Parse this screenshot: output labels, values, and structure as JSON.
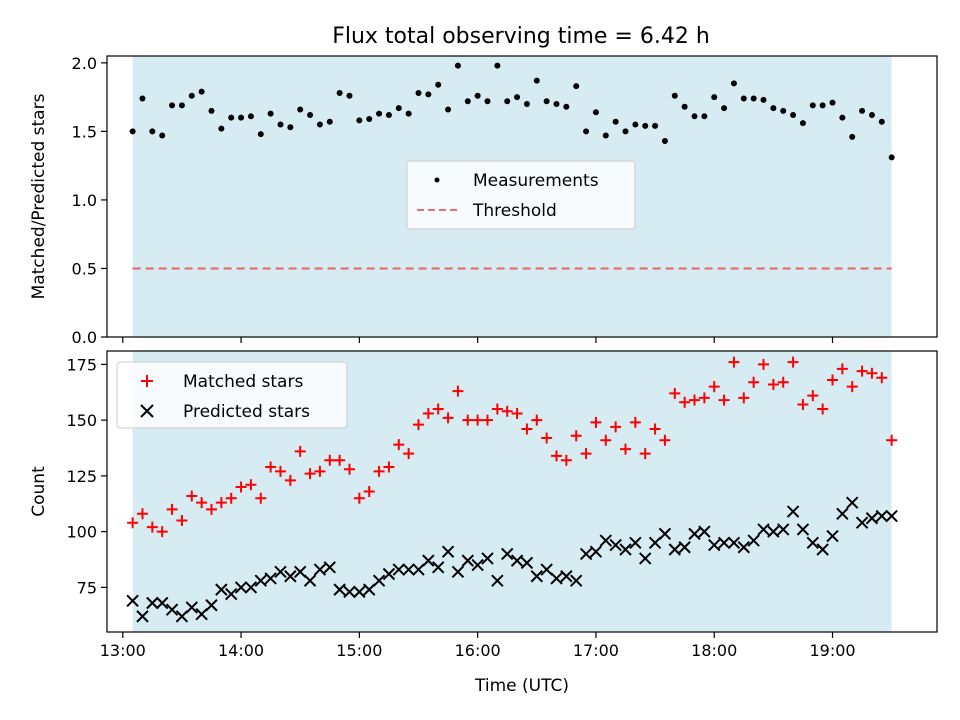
{
  "figure": {
    "title": "Flux total observing time = 6.42 h"
  },
  "chart_data": [
    {
      "type": "scatter",
      "ylabel": "Matched/Predicted stars",
      "xlabel": "",
      "xlim": [
        "12:52",
        "19:53"
      ],
      "ylim": [
        0,
        2.05
      ],
      "xticks": [
        "13:00",
        "14:00",
        "15:00",
        "16:00",
        "17:00",
        "18:00",
        "19:00"
      ],
      "yticks": [
        "0.0",
        "0.5",
        "1.0",
        "1.5",
        "2.0"
      ],
      "grid": false,
      "legend": "center",
      "shaded_span": [
        "13:05",
        "19:30"
      ],
      "threshold": 0.5,
      "series": [
        {
          "name": "Measurements",
          "marker": "dot",
          "color": "#000000",
          "x": [
            "13:05",
            "13:10",
            "13:15",
            "13:20",
            "13:25",
            "13:30",
            "13:35",
            "13:40",
            "13:45",
            "13:50",
            "13:55",
            "14:00",
            "14:05",
            "14:10",
            "14:15",
            "14:20",
            "14:25",
            "14:30",
            "14:35",
            "14:40",
            "14:45",
            "14:50",
            "14:55",
            "15:00",
            "15:05",
            "15:10",
            "15:15",
            "15:20",
            "15:25",
            "15:30",
            "15:35",
            "15:40",
            "15:45",
            "15:50",
            "15:55",
            "16:00",
            "16:05",
            "16:10",
            "16:15",
            "16:20",
            "16:25",
            "16:30",
            "16:35",
            "16:40",
            "16:45",
            "16:50",
            "16:55",
            "17:00",
            "17:05",
            "17:10",
            "17:15",
            "17:20",
            "17:25",
            "17:30",
            "17:35",
            "17:40",
            "17:45",
            "17:50",
            "17:55",
            "18:00",
            "18:05",
            "18:10",
            "18:15",
            "18:20",
            "18:25",
            "18:30",
            "18:35",
            "18:40",
            "18:45",
            "18:50",
            "18:55",
            "19:00",
            "19:05",
            "19:10",
            "19:15",
            "19:20",
            "19:25",
            "19:30"
          ],
          "y": [
            1.5,
            1.74,
            1.5,
            1.47,
            1.69,
            1.69,
            1.76,
            1.79,
            1.65,
            1.52,
            1.6,
            1.6,
            1.61,
            1.48,
            1.63,
            1.55,
            1.53,
            1.66,
            1.62,
            1.55,
            1.57,
            1.78,
            1.76,
            1.58,
            1.59,
            1.63,
            1.62,
            1.67,
            1.63,
            1.78,
            1.77,
            1.84,
            1.66,
            1.98,
            1.72,
            1.76,
            1.72,
            1.98,
            1.72,
            1.75,
            1.7,
            1.87,
            1.72,
            1.7,
            1.68,
            1.83,
            1.5,
            1.64,
            1.47,
            1.57,
            1.5,
            1.55,
            1.54,
            1.54,
            1.43,
            1.76,
            1.68,
            1.61,
            1.61,
            1.75,
            1.67,
            1.85,
            1.74,
            1.74,
            1.73,
            1.67,
            1.65,
            1.62,
            1.56,
            1.69,
            1.69,
            1.71,
            1.6,
            1.46,
            1.65,
            1.62,
            1.57,
            1.31
          ]
        },
        {
          "name": "Threshold",
          "marker": "dashed-line",
          "color": "#e87070"
        }
      ]
    },
    {
      "type": "scatter",
      "ylabel": "Count",
      "xlabel": "Time (UTC)",
      "xlim": [
        "12:52",
        "19:53"
      ],
      "ylim": [
        55,
        181
      ],
      "xticks": [
        "13:00",
        "14:00",
        "15:00",
        "16:00",
        "17:00",
        "18:00",
        "19:00"
      ],
      "yticks": [
        "75",
        "100",
        "125",
        "150",
        "175"
      ],
      "grid": false,
      "legend": "top-left",
      "shaded_span": [
        "13:05",
        "19:30"
      ],
      "series": [
        {
          "name": "Matched stars",
          "marker": "plus",
          "color": "#ff0000",
          "x": [
            "13:05",
            "13:10",
            "13:15",
            "13:20",
            "13:25",
            "13:30",
            "13:35",
            "13:40",
            "13:45",
            "13:50",
            "13:55",
            "14:00",
            "14:05",
            "14:10",
            "14:15",
            "14:20",
            "14:25",
            "14:30",
            "14:35",
            "14:40",
            "14:45",
            "14:50",
            "14:55",
            "15:00",
            "15:05",
            "15:10",
            "15:15",
            "15:20",
            "15:25",
            "15:30",
            "15:35",
            "15:40",
            "15:45",
            "15:50",
            "15:55",
            "16:00",
            "16:05",
            "16:10",
            "16:15",
            "16:20",
            "16:25",
            "16:30",
            "16:35",
            "16:40",
            "16:45",
            "16:50",
            "16:55",
            "17:00",
            "17:05",
            "17:10",
            "17:15",
            "17:20",
            "17:25",
            "17:30",
            "17:35",
            "17:40",
            "17:45",
            "17:50",
            "17:55",
            "18:00",
            "18:05",
            "18:10",
            "18:15",
            "18:20",
            "18:25",
            "18:30",
            "18:35",
            "18:40",
            "18:45",
            "18:50",
            "18:55",
            "19:00",
            "19:05",
            "19:10",
            "19:15",
            "19:20",
            "19:25",
            "19:30"
          ],
          "y": [
            104,
            108,
            102,
            100,
            110,
            105,
            116,
            113,
            110,
            113,
            115,
            120,
            121,
            115,
            129,
            127,
            123,
            136,
            126,
            127,
            132,
            132,
            128,
            115,
            118,
            127,
            129,
            139,
            135,
            148,
            153,
            155,
            151,
            163,
            150,
            150,
            150,
            155,
            154,
            153,
            146,
            150,
            142,
            134,
            132,
            143,
            135,
            149,
            141,
            147,
            137,
            149,
            135,
            146,
            141,
            162,
            158,
            159,
            160,
            165,
            159,
            176,
            160,
            167,
            175,
            166,
            167,
            176,
            157,
            161,
            155,
            168,
            173,
            165,
            172,
            171,
            169,
            141
          ]
        },
        {
          "name": "Predicted stars",
          "marker": "cross",
          "color": "#000000",
          "x": [
            "13:05",
            "13:10",
            "13:15",
            "13:20",
            "13:25",
            "13:30",
            "13:35",
            "13:40",
            "13:45",
            "13:50",
            "13:55",
            "14:00",
            "14:05",
            "14:10",
            "14:15",
            "14:20",
            "14:25",
            "14:30",
            "14:35",
            "14:40",
            "14:45",
            "14:50",
            "14:55",
            "15:00",
            "15:05",
            "15:10",
            "15:15",
            "15:20",
            "15:25",
            "15:30",
            "15:35",
            "15:40",
            "15:45",
            "15:50",
            "15:55",
            "16:00",
            "16:05",
            "16:10",
            "16:15",
            "16:20",
            "16:25",
            "16:30",
            "16:35",
            "16:40",
            "16:45",
            "16:50",
            "16:55",
            "17:00",
            "17:05",
            "17:10",
            "17:15",
            "17:20",
            "17:25",
            "17:30",
            "17:35",
            "17:40",
            "17:45",
            "17:50",
            "17:55",
            "18:00",
            "18:05",
            "18:10",
            "18:15",
            "18:20",
            "18:25",
            "18:30",
            "18:35",
            "18:40",
            "18:45",
            "18:50",
            "18:55",
            "19:00",
            "19:05",
            "19:10",
            "19:15",
            "19:20",
            "19:25",
            "19:30"
          ],
          "y": [
            69,
            62,
            68,
            68,
            65,
            62,
            66,
            63,
            67,
            74,
            72,
            75,
            75,
            78,
            79,
            82,
            80,
            82,
            78,
            83,
            84,
            74,
            73,
            73,
            74,
            78,
            81,
            83,
            83,
            83,
            87,
            84,
            91,
            82,
            87,
            85,
            88,
            78,
            90,
            87,
            86,
            80,
            83,
            79,
            80,
            78,
            90,
            91,
            96,
            94,
            92,
            95,
            88,
            95,
            99,
            92,
            93,
            99,
            100,
            94,
            95,
            95,
            93,
            96,
            101,
            100,
            101,
            109,
            101,
            95,
            92,
            98,
            108,
            113,
            104,
            106,
            107,
            107
          ]
        }
      ]
    }
  ]
}
